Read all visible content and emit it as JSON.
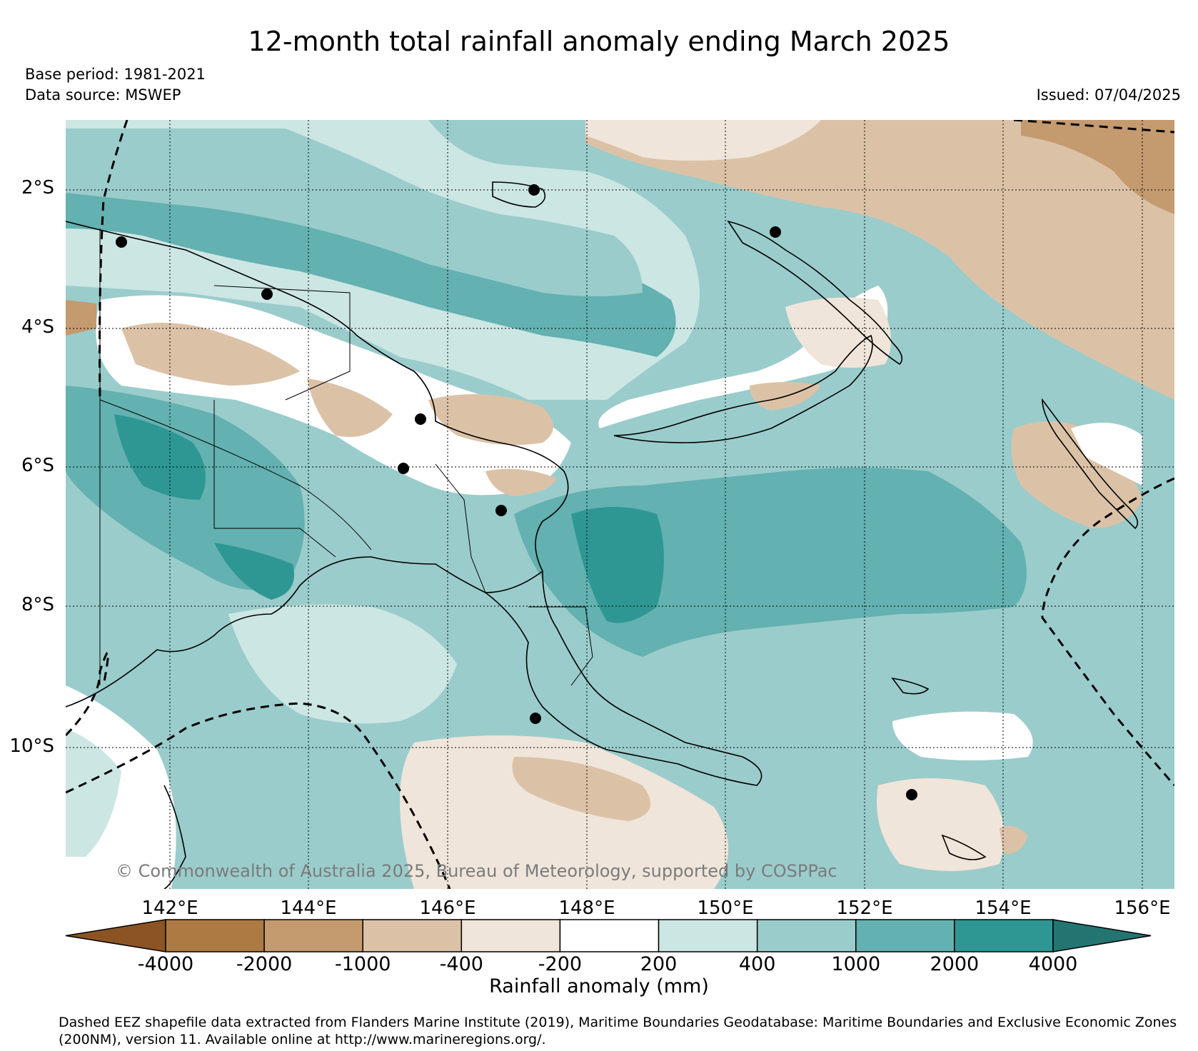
{
  "title": "12-month total rainfall anomaly ending March 2025",
  "base_period": "Base period: 1981-2021",
  "data_source": "Data source: MSWEP",
  "issued": "Issued: 07/04/2025",
  "map": {
    "lat_labels": [
      "2°S",
      "4°S",
      "6°S",
      "8°S",
      "10°S"
    ],
    "lon_labels": [
      "142°E",
      "144°E",
      "146°E",
      "148°E",
      "150°E",
      "152°E",
      "154°E",
      "156°E"
    ],
    "copyright": "© Commonwealth of Australia 2025, Bureau of Meteorology, supported by COSPPac"
  },
  "colorbar": {
    "title": "Rainfall anomaly (mm)",
    "boundaries": [
      "-4000",
      "-2000",
      "-1000",
      "-400",
      "-200",
      "200",
      "400",
      "1000",
      "2000",
      "4000"
    ],
    "colors": [
      "#8c5424",
      "#ad7a43",
      "#c49a6f",
      "#dbc2a7",
      "#f0e5da",
      "#ffffff",
      "#cce6e4",
      "#9acccb",
      "#63b1b0",
      "#2e9793",
      "#237572"
    ]
  },
  "footnote": "Dashed EEZ shapefile data extracted from Flanders Marine Institute (2019), Maritime Boundaries Geodatabase: Maritime Boundaries and Exclusive Economic Zones (200NM), version 11. Available online at http://www.marineregions.org/."
}
